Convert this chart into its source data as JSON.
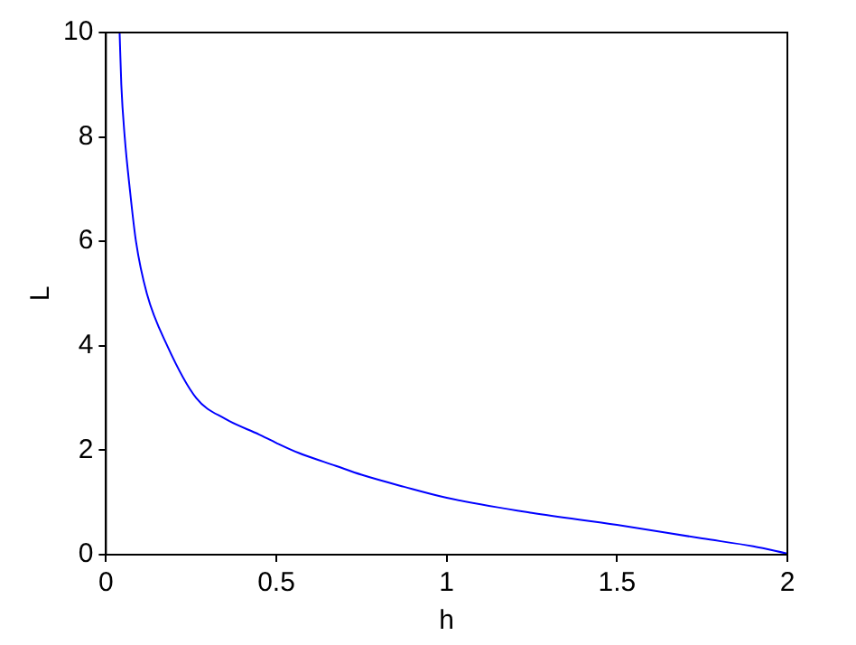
{
  "chart_data": {
    "type": "line",
    "xlabel": "h",
    "ylabel": "L",
    "xlim": [
      0,
      2
    ],
    "xticks": [
      0,
      0.5,
      1,
      1.5,
      2
    ],
    "ylim": [
      0,
      10
    ],
    "yticks": [
      0,
      2,
      4,
      6,
      8,
      10
    ],
    "grid": false,
    "legend": false,
    "marker": "none",
    "line_style": "solid",
    "series": [
      {
        "color": "#0000ff",
        "x": [
          0.04,
          0.045,
          0.055,
          0.07,
          0.088,
          0.12,
          0.18,
          0.265,
          0.35,
          0.45,
          0.5,
          0.565,
          0.675,
          0.75,
          0.875,
          1,
          1.25,
          1.5,
          1.75,
          1.9,
          2
        ],
        "values": [
          10,
          9,
          8,
          7,
          6,
          5,
          4,
          3,
          2.6,
          2.3,
          2.14,
          1.95,
          1.7,
          1.53,
          1.3,
          1.09,
          0.8,
          0.57,
          0.31,
          0.16,
          0.02
        ]
      }
    ]
  }
}
